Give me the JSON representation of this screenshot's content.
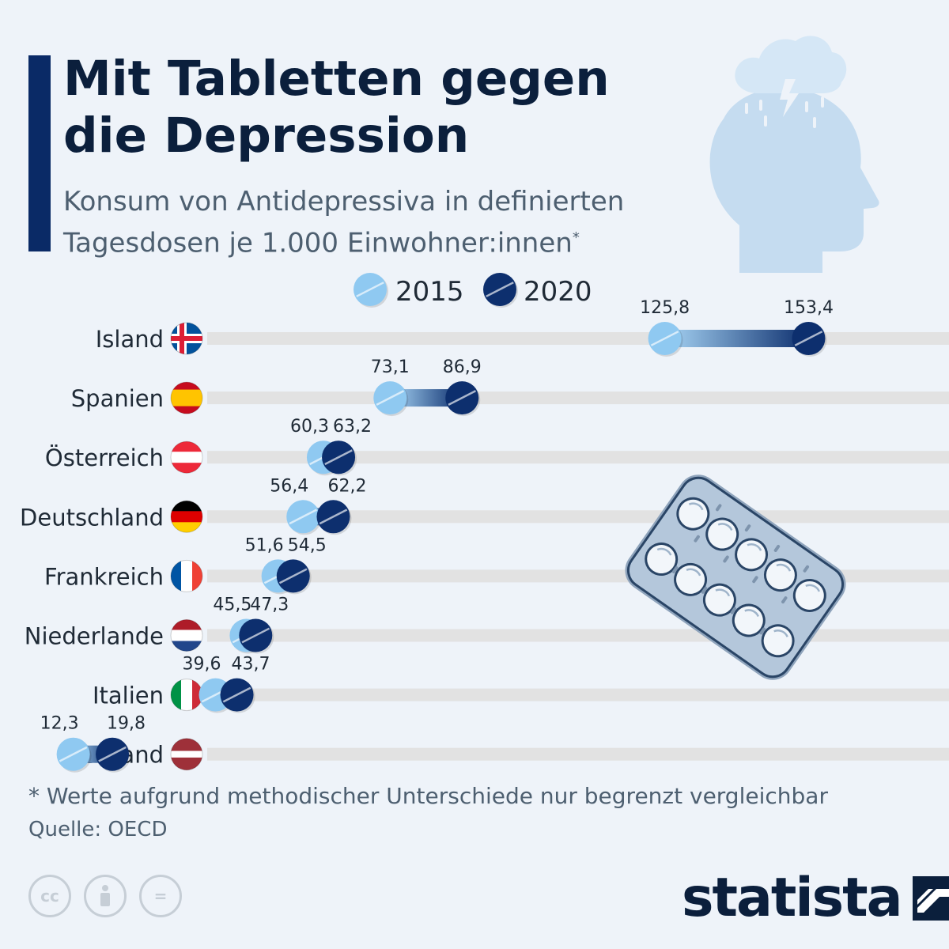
{
  "header": {
    "title_line1": "Mit Tabletten gegen",
    "title_line2": "die Depression",
    "subtitle_line1": "Konsum von Antidepressiva in definierten",
    "subtitle_line2": "Tagesdosen je 1.000 Einwohner:innen",
    "subtitle_marker": "*"
  },
  "chart_data": {
    "type": "dumbbell",
    "series": [
      {
        "name": "2015",
        "color": "#8fc9f1",
        "values": [
          125.8,
          73.1,
          60.3,
          56.4,
          51.6,
          45.5,
          39.6,
          12.3
        ]
      },
      {
        "name": "2020",
        "color": "#0d2f6e",
        "values": [
          153.4,
          86.9,
          63.2,
          62.2,
          54.5,
          47.3,
          43.7,
          19.8
        ]
      }
    ],
    "categories": [
      "Island",
      "Spanien",
      "Österreich",
      "Deutschland",
      "Frankreich",
      "Niederlande",
      "Italien",
      "Lettland"
    ],
    "labels_2015": [
      "125,8",
      "73,1",
      "60,3",
      "56,4",
      "51,6",
      "45,5",
      "39,6",
      "12,3"
    ],
    "labels_2020": [
      "153,4",
      "86,9",
      "63,2",
      "62,2",
      "54,5",
      "47,3",
      "43,7",
      "19,8"
    ],
    "legend_position": "top-center",
    "xlim": [
      0,
      160
    ]
  },
  "flags": {
    "Island": {
      "type": "nordic",
      "field": "#02529c",
      "outer": "#ffffff",
      "inner": "#dc1e35"
    },
    "Spanien": {
      "type": "h3",
      "colors": [
        "#c60b1e",
        "#ffc400",
        "#c60b1e"
      ],
      "weights": [
        1,
        2,
        1
      ]
    },
    "Österreich": {
      "type": "h3",
      "colors": [
        "#ed2939",
        "#ffffff",
        "#ed2939"
      ],
      "weights": [
        1,
        1,
        1
      ]
    },
    "Deutschland": {
      "type": "h3",
      "colors": [
        "#000000",
        "#dd0000",
        "#ffce00"
      ],
      "weights": [
        1,
        1,
        1
      ]
    },
    "Frankreich": {
      "type": "v3",
      "colors": [
        "#0055a4",
        "#ffffff",
        "#ef4135"
      ],
      "weights": [
        1,
        1,
        1
      ]
    },
    "Niederlande": {
      "type": "h3",
      "colors": [
        "#ae1c28",
        "#ffffff",
        "#21468b"
      ],
      "weights": [
        1,
        1,
        1
      ]
    },
    "Italien": {
      "type": "v3",
      "colors": [
        "#009246",
        "#ffffff",
        "#ce2b37"
      ],
      "weights": [
        1,
        1,
        1
      ]
    },
    "Lettland": {
      "type": "h3",
      "colors": [
        "#9e3039",
        "#ffffff",
        "#9e3039"
      ],
      "weights": [
        2,
        1,
        2
      ]
    }
  },
  "footer": {
    "note": "* Werte aufgrund methodischer Unterschiede nur begrenzt vergleichbar",
    "source": "Quelle: OECD",
    "cc_label": "cc",
    "eq_label": "=",
    "brand": "statista"
  },
  "colors": {
    "background": "#eef3f9",
    "row_line": "#e2e2e2",
    "accent": "#0a2a66",
    "illustration": "#c5dcf0"
  },
  "icons": [
    "head-with-cloud-icon",
    "pill-blister-icon",
    "cc-icon",
    "person-icon",
    "equals-icon",
    "statista-logo-icon"
  ]
}
